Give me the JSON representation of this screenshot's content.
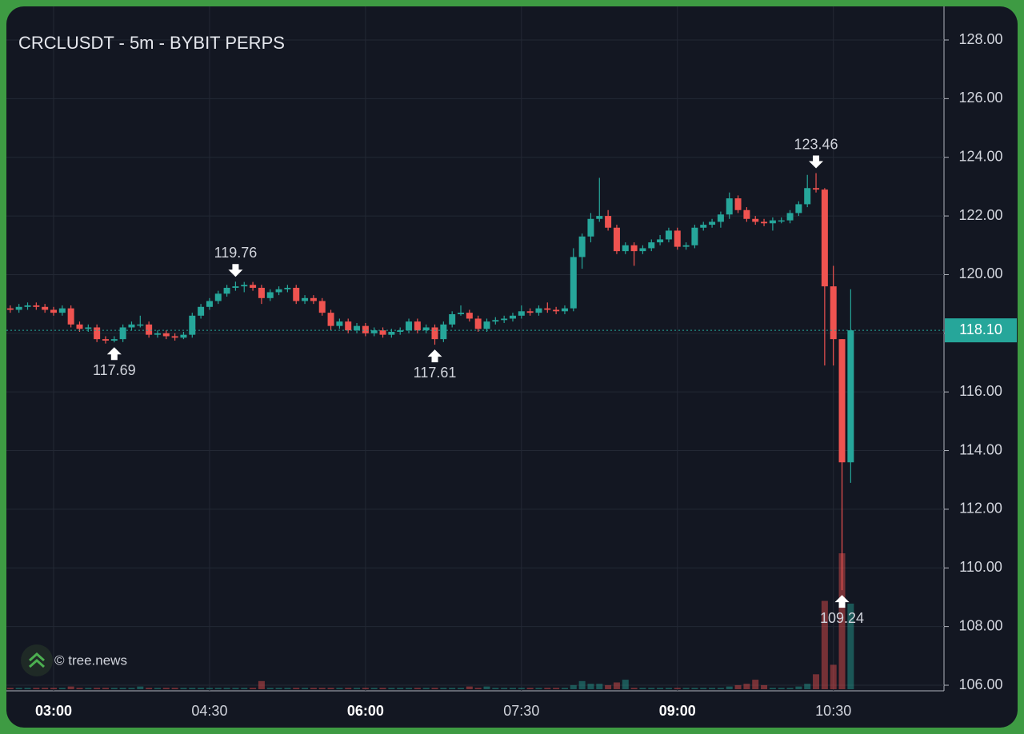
{
  "chart_data": {
    "type": "candlestick",
    "title": "CRCLUSDT - 5m - BYBIT PERPS",
    "watermark": "© tree.news",
    "up_color": "#26a69a",
    "down_color": "#ef5350",
    "grid": true,
    "categories": [
      null,
      null,
      null,
      null,
      null,
      "03:00",
      null,
      null,
      null,
      null,
      null,
      null,
      null,
      null,
      null,
      null,
      null,
      null,
      null,
      null,
      null,
      null,
      null,
      "04:30",
      null,
      null,
      null,
      null,
      null,
      null,
      null,
      null,
      null,
      null,
      null,
      null,
      null,
      null,
      null,
      null,
      null,
      "06:00",
      null,
      null,
      null,
      null,
      null,
      null,
      null,
      null,
      null,
      null,
      null,
      null,
      null,
      null,
      null,
      null,
      null,
      "07:30",
      null,
      null,
      null,
      null,
      null,
      null,
      null,
      null,
      null,
      null,
      null,
      null,
      null,
      null,
      null,
      null,
      null,
      "09:00",
      null,
      null,
      null,
      null,
      null,
      null,
      null,
      null,
      null,
      null,
      null,
      null,
      null,
      null,
      null,
      null,
      null,
      "10:30",
      null,
      null
    ],
    "open": [
      118.85,
      118.8,
      118.9,
      118.95,
      118.9,
      118.8,
      118.7,
      118.85,
      118.3,
      118.15,
      118.2,
      117.8,
      117.75,
      117.8,
      118.2,
      118.3,
      118.3,
      117.95,
      118.0,
      117.9,
      117.85,
      117.95,
      118.6,
      118.9,
      119.1,
      119.35,
      119.55,
      119.6,
      119.65,
      119.55,
      119.2,
      119.4,
      119.5,
      119.55,
      119.1,
      119.2,
      119.1,
      118.7,
      118.25,
      118.4,
      118.1,
      118.25,
      118.0,
      118.1,
      117.95,
      118.05,
      118.1,
      118.4,
      118.1,
      118.2,
      117.8,
      118.3,
      118.65,
      118.7,
      118.5,
      118.15,
      118.4,
      118.45,
      118.5,
      118.6,
      118.75,
      118.7,
      118.85,
      118.8,
      118.75,
      118.85,
      120.6,
      121.3,
      121.9,
      122.0,
      121.6,
      120.8,
      121.0,
      120.8,
      120.9,
      121.1,
      121.2,
      121.5,
      120.95,
      121.0,
      121.6,
      121.7,
      121.8,
      122.05,
      122.6,
      122.2,
      121.9,
      121.8,
      121.75,
      121.85,
      121.85,
      122.1,
      122.4,
      122.95,
      122.9,
      119.6,
      117.8,
      113.6
    ],
    "high": [
      118.95,
      119.0,
      119.05,
      119.05,
      119.0,
      118.9,
      118.95,
      118.95,
      118.4,
      118.3,
      118.3,
      117.9,
      117.9,
      118.3,
      118.4,
      118.6,
      118.4,
      118.1,
      118.1,
      118.0,
      118.05,
      118.7,
      119.0,
      119.2,
      119.45,
      119.65,
      119.76,
      119.75,
      119.75,
      119.65,
      119.5,
      119.6,
      119.65,
      119.65,
      119.3,
      119.3,
      119.2,
      118.8,
      118.5,
      118.5,
      118.35,
      118.35,
      118.2,
      118.2,
      118.15,
      118.2,
      118.5,
      118.5,
      118.3,
      118.3,
      118.4,
      118.75,
      118.95,
      118.8,
      118.6,
      118.5,
      118.55,
      118.6,
      118.7,
      118.95,
      118.85,
      118.95,
      119.05,
      118.9,
      118.95,
      120.9,
      121.4,
      122.1,
      123.3,
      122.2,
      121.7,
      121.1,
      121.1,
      121.0,
      121.2,
      121.35,
      121.6,
      121.6,
      121.1,
      121.7,
      121.8,
      121.9,
      122.15,
      122.8,
      122.7,
      122.3,
      122.0,
      121.9,
      121.95,
      121.95,
      122.2,
      122.5,
      123.4,
      123.46,
      122.95,
      120.3,
      117.8,
      119.5
    ],
    "low": [
      118.7,
      118.7,
      118.8,
      118.8,
      118.7,
      118.6,
      118.6,
      118.2,
      118.05,
      118.05,
      117.7,
      117.65,
      117.69,
      117.7,
      118.1,
      118.2,
      117.85,
      117.85,
      117.8,
      117.75,
      117.8,
      117.85,
      118.5,
      118.8,
      119.0,
      119.25,
      119.45,
      119.4,
      119.45,
      119.0,
      119.1,
      119.3,
      119.4,
      119.0,
      119.0,
      119.0,
      118.6,
      118.1,
      118.15,
      118.0,
      118.0,
      117.9,
      117.9,
      117.85,
      117.85,
      117.95,
      118.0,
      118.0,
      118.0,
      117.61,
      117.7,
      118.2,
      118.6,
      118.4,
      118.05,
      118.05,
      118.3,
      118.35,
      118.4,
      118.5,
      118.6,
      118.6,
      118.7,
      118.65,
      118.65,
      118.75,
      120.2,
      121.1,
      121.8,
      121.5,
      120.7,
      120.7,
      120.3,
      120.7,
      120.8,
      121.0,
      121.1,
      120.85,
      120.85,
      120.9,
      121.5,
      121.6,
      121.6,
      121.9,
      122.1,
      121.8,
      121.7,
      121.65,
      121.5,
      121.75,
      121.75,
      122.0,
      122.3,
      122.8,
      116.9,
      116.9,
      109.24,
      112.9
    ],
    "close": [
      118.8,
      118.9,
      118.95,
      118.9,
      118.8,
      118.7,
      118.85,
      118.3,
      118.15,
      118.2,
      117.8,
      117.75,
      117.8,
      118.2,
      118.3,
      118.3,
      117.95,
      118.0,
      117.9,
      117.85,
      117.95,
      118.6,
      118.9,
      119.1,
      119.35,
      119.55,
      119.6,
      119.65,
      119.55,
      119.2,
      119.4,
      119.5,
      119.55,
      119.1,
      119.2,
      119.1,
      118.7,
      118.25,
      118.4,
      118.1,
      118.25,
      118.0,
      118.1,
      117.95,
      118.05,
      118.1,
      118.4,
      118.1,
      118.2,
      117.8,
      118.3,
      118.65,
      118.7,
      118.5,
      118.15,
      118.4,
      118.45,
      118.5,
      118.6,
      118.75,
      118.7,
      118.85,
      118.8,
      118.75,
      118.85,
      120.6,
      121.3,
      121.9,
      122.0,
      121.6,
      120.8,
      121.0,
      120.8,
      120.9,
      121.1,
      121.2,
      121.5,
      120.95,
      121.0,
      121.6,
      121.7,
      121.8,
      122.05,
      122.6,
      122.2,
      121.9,
      121.8,
      121.75,
      121.85,
      121.85,
      122.1,
      122.4,
      122.95,
      122.9,
      119.6,
      117.8,
      113.6,
      118.1
    ],
    "volume": [
      1,
      1,
      1,
      1,
      1,
      1,
      1,
      2,
      1,
      1,
      1,
      1,
      1,
      1,
      1,
      2,
      1,
      1,
      1,
      1,
      1,
      1,
      1,
      1,
      1,
      1,
      1,
      1,
      1,
      6,
      1,
      1,
      1,
      1,
      1,
      1,
      1,
      1,
      1,
      1,
      1,
      1,
      1,
      1,
      1,
      1,
      1,
      1,
      1,
      1,
      1,
      1,
      1,
      2,
      1,
      2,
      1,
      1,
      1,
      1,
      1,
      1,
      1,
      1,
      1,
      3,
      6,
      4,
      4,
      3,
      5,
      7,
      1,
      1,
      1,
      1,
      1,
      1,
      1,
      1,
      1,
      1,
      1,
      2,
      3,
      4,
      7,
      3,
      1,
      1,
      1,
      2,
      4,
      11,
      65,
      18,
      100,
      63
    ],
    "ylim": [
      106,
      128
    ],
    "yticks": [
      {
        "value": 106,
        "label": "106.00"
      },
      {
        "value": 108,
        "label": "108.00"
      },
      {
        "value": 110,
        "label": "110.00"
      },
      {
        "value": 112,
        "label": "112.00"
      },
      {
        "value": 114,
        "label": "114.00"
      },
      {
        "value": 116,
        "label": "116.00"
      },
      {
        "value": 118,
        "label": "118.00"
      },
      {
        "value": 120,
        "label": "120.00"
      },
      {
        "value": 122,
        "label": "122.00"
      },
      {
        "value": 124,
        "label": "124.00"
      },
      {
        "value": 126,
        "label": "126.00"
      },
      {
        "value": 128,
        "label": "128.00"
      }
    ],
    "last_price": {
      "value": 118.1,
      "label": "118.10"
    },
    "annotations": [
      {
        "at": 12,
        "value": 117.69,
        "kind": "low"
      },
      {
        "at": 26,
        "value": 119.76,
        "kind": "high"
      },
      {
        "at": 49,
        "value": 117.61,
        "kind": "low"
      },
      {
        "at": 93,
        "value": 123.46,
        "kind": "high"
      },
      {
        "at": 96,
        "value": 109.24,
        "kind": "low"
      }
    ]
  }
}
